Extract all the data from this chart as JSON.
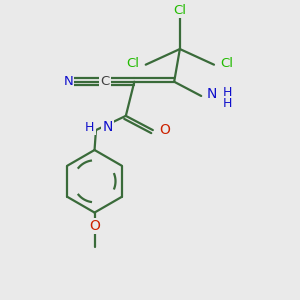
{
  "bg_color": "#eaeaea",
  "bond_color": "#3a6b3a",
  "cl_color": "#22bb00",
  "n_color": "#1010cc",
  "o_color": "#cc2200",
  "c_color": "#404040",
  "line_width": 1.6,
  "fig_size": [
    3.0,
    3.0
  ],
  "dpi": 100,
  "xlim": [
    0,
    10
  ],
  "ylim": [
    0,
    10.5
  ]
}
